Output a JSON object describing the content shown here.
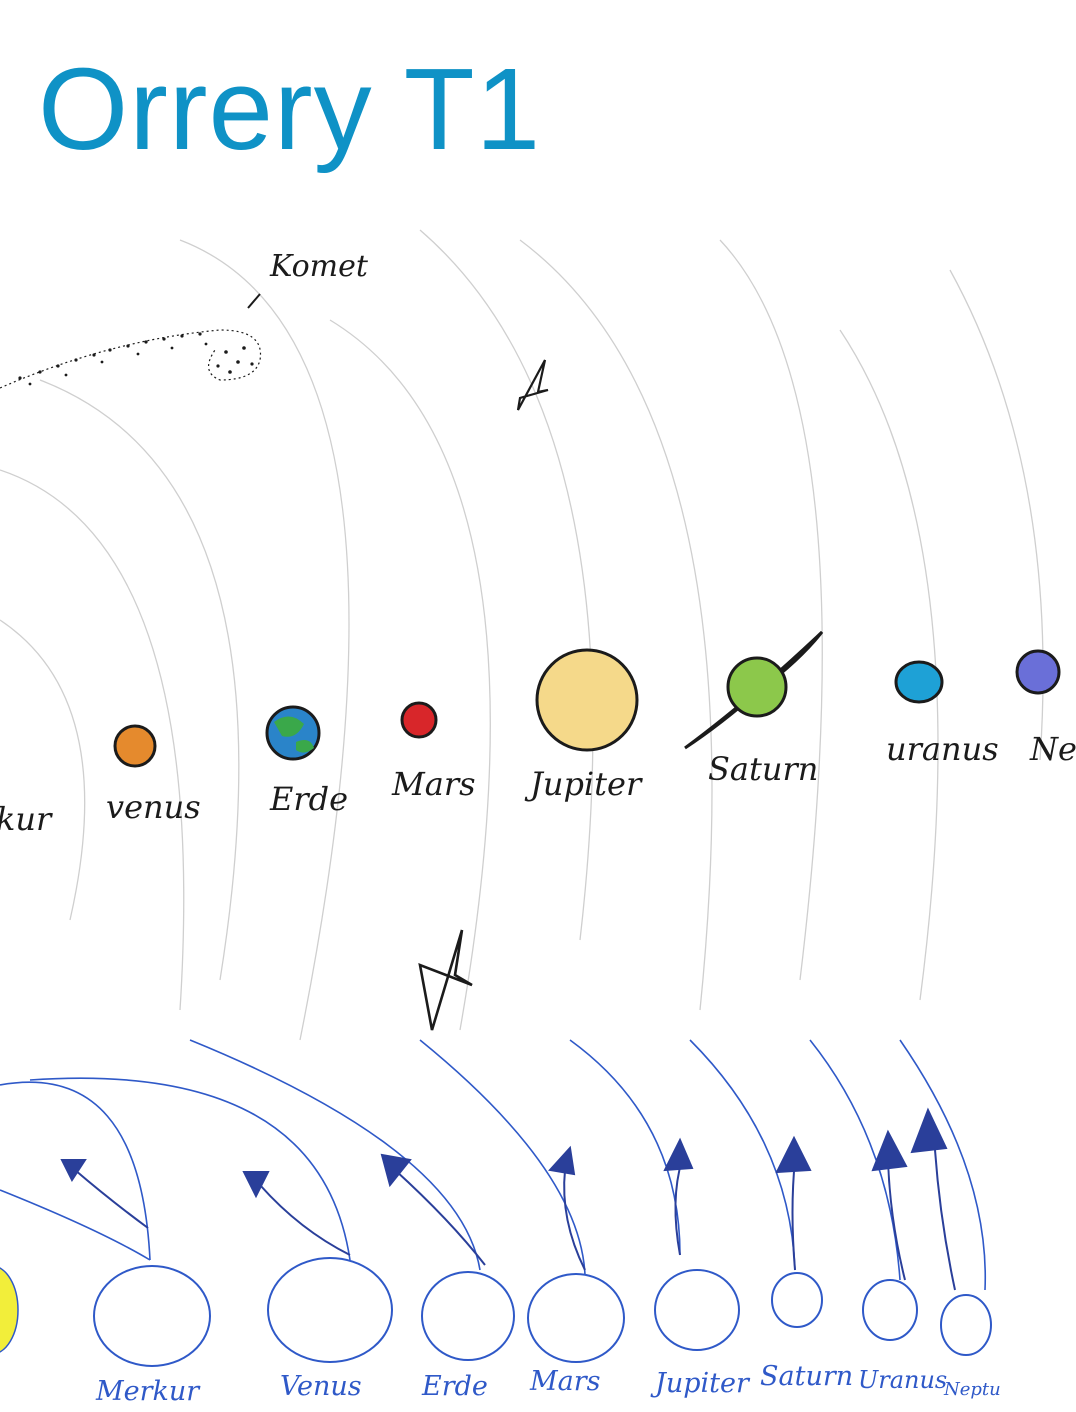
{
  "title": "Orrery T1",
  "drawing": {
    "comet_label": "Komet",
    "planets_upper": [
      "kur",
      "venus",
      "Erde",
      "Mars",
      "Jupiter",
      "Saturn",
      "uranus",
      "Ne"
    ],
    "planets_lower": [
      "Merkur",
      "Venus",
      "Erde",
      "Mars",
      "Jupiter",
      "Saturn",
      "Uranus",
      "Neptu"
    ],
    "colors": {
      "title": "#0f92c6",
      "orbit_lines": "#c8c8c8",
      "pencil_ink": "#1b1b1b",
      "blue_ink": "#2f59c8",
      "venus": "#e58a2d",
      "earth_ocean": "#2a84c9",
      "earth_land": "#3aa84a",
      "mars": "#d8262a",
      "jupiter": "#f5d98a",
      "saturn": "#8cc84b",
      "uranus": "#1ea1d6",
      "neptune": "#6a6fd8",
      "sun": "#f2ee3a"
    }
  }
}
